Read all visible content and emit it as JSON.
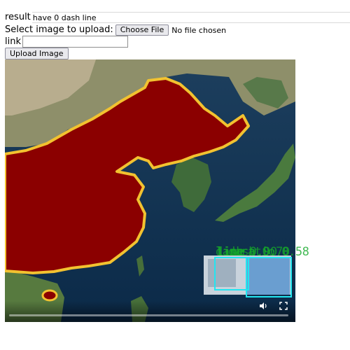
{
  "result": {
    "label": "result",
    "value": "have 0 dash line"
  },
  "upload": {
    "label": "Select image to upload:",
    "choose_label": "Choose File",
    "status": "No file chosen"
  },
  "link": {
    "label": "link",
    "value": ""
  },
  "actions": {
    "upload_label": "Upload Image"
  },
  "player": {
    "progress_fraction": 0.0
  },
  "overlay_labels": [
    "line",
    "line",
    "line",
    "dash 0.90",
    "dash 0.70",
    "ratio 0.58"
  ],
  "colors": {
    "highlight_fill": "#8b0000",
    "highlight_border": "#f2c230",
    "detection_box": "#22e5f0",
    "label_text": "#15a82a"
  }
}
